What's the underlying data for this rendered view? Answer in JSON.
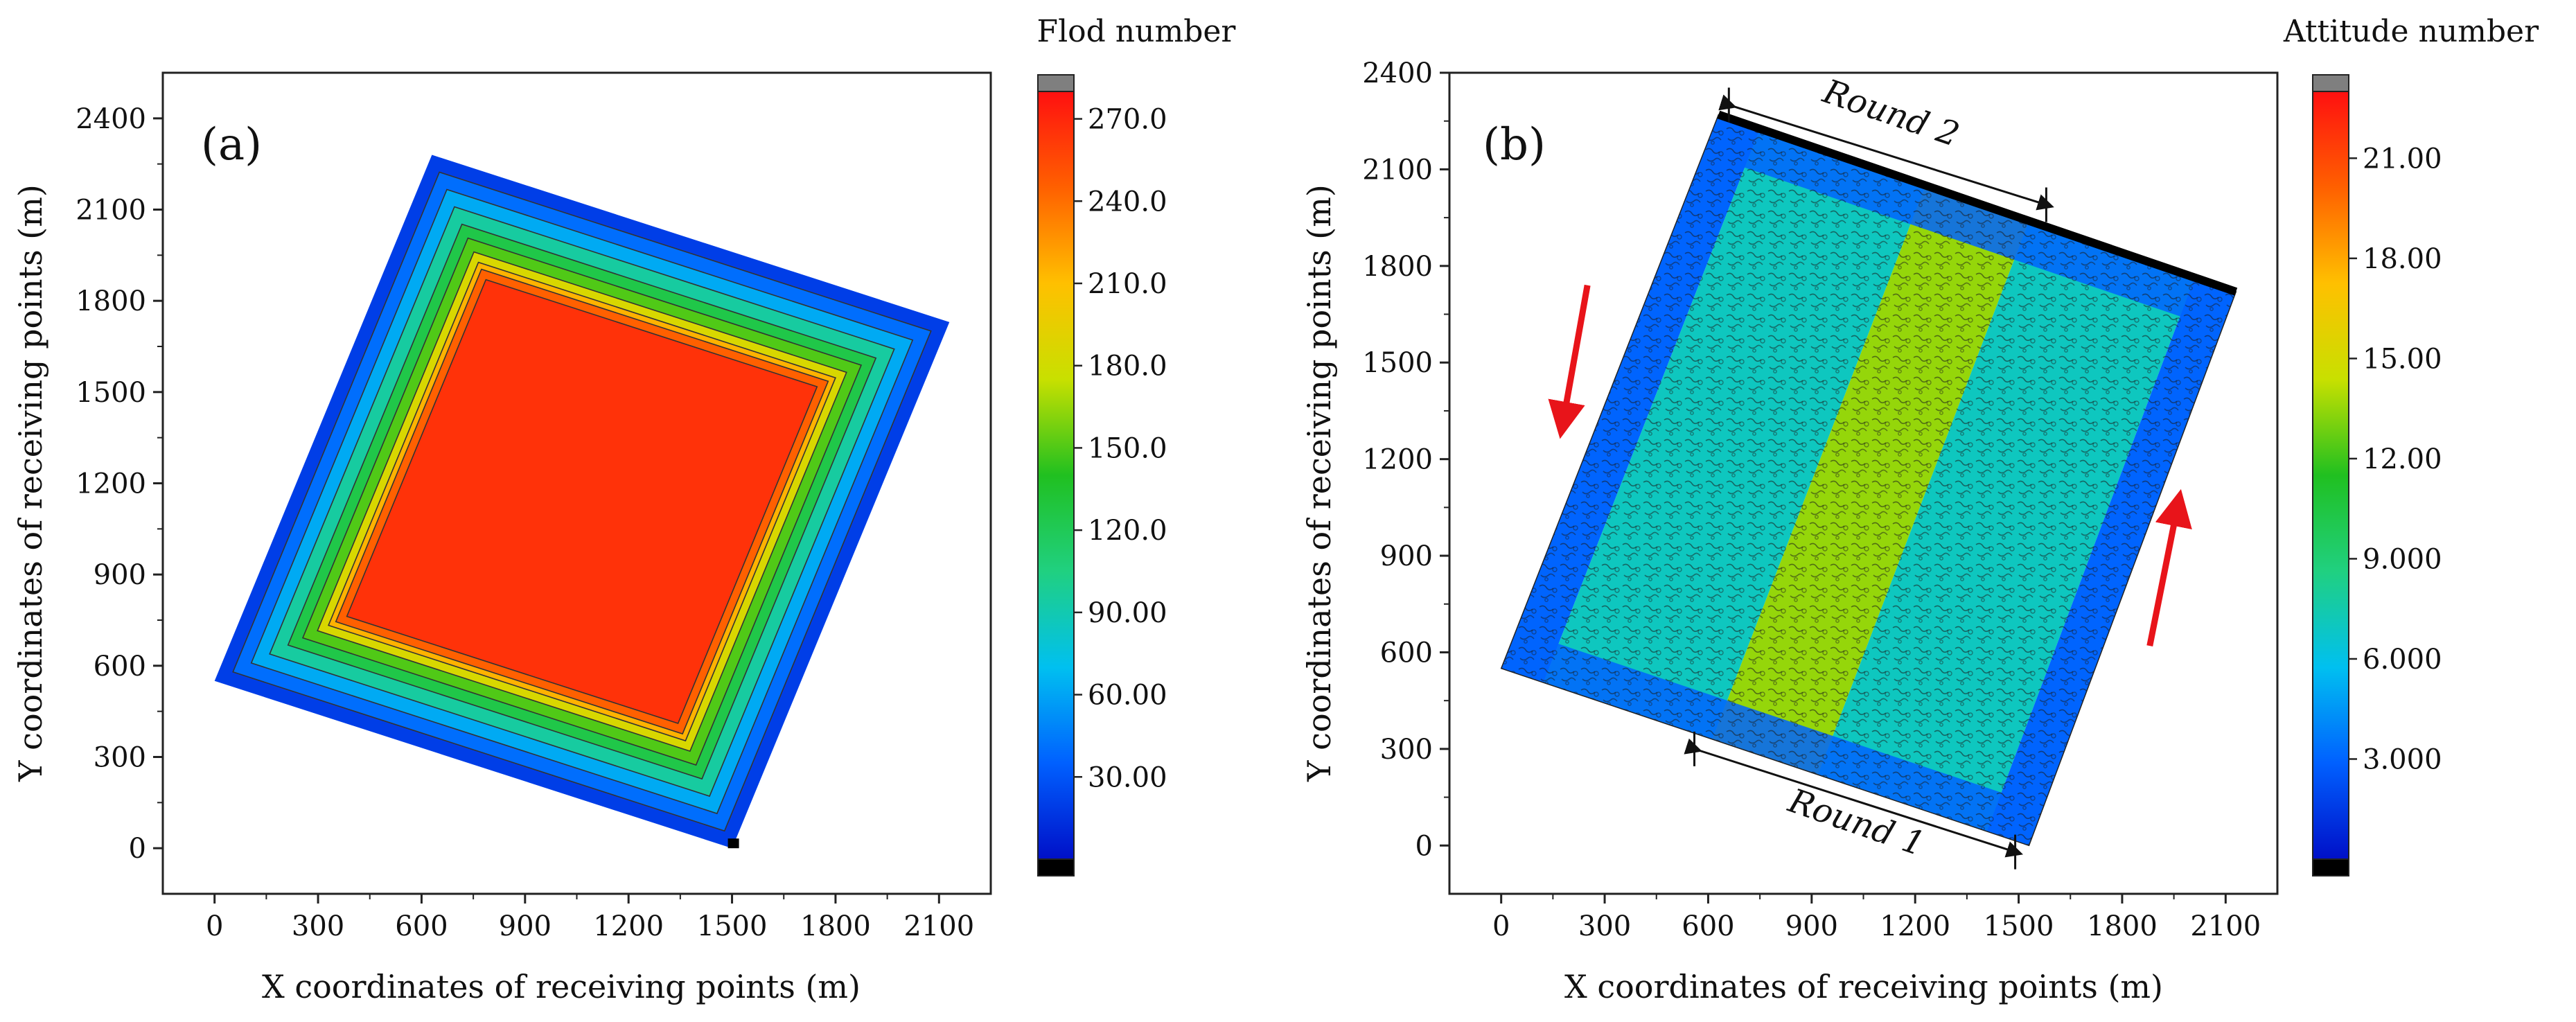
{
  "chart_data": [
    {
      "type": "heatmap",
      "panel_label": "(a)",
      "xlabel": "X coordinates of receiving points (m)",
      "ylabel": "Y coordinates of receiving points (m)",
      "xlim": [
        -150,
        2250
      ],
      "ylim": [
        -150,
        2550
      ],
      "x_ticks": [
        0,
        300,
        600,
        900,
        1200,
        1500,
        1800,
        2100
      ],
      "y_ticks": [
        0,
        300,
        600,
        900,
        1200,
        1500,
        1800,
        2100,
        2400
      ],
      "x_tick_labels": [
        "0",
        "300",
        "600",
        "900",
        "1200",
        "1500",
        "1800",
        "2100"
      ],
      "y_tick_labels": [
        "0",
        "300",
        "600",
        "900",
        "1200",
        "1500",
        "1800",
        "2100",
        "2400"
      ],
      "corners": [
        [
          0,
          550
        ],
        [
          1500,
          0
        ],
        [
          2130,
          1730
        ],
        [
          630,
          2280
        ]
      ],
      "colorbar": {
        "title": "Flod number",
        "min": 0,
        "max": 280,
        "tick_values": [
          30,
          60,
          90,
          120,
          150,
          180,
          210,
          240,
          270
        ],
        "tick_labels": [
          "30.00",
          "60.00",
          "90.00",
          "120.0",
          "150.0",
          "180.0",
          "210.0",
          "240.0",
          "270.0"
        ]
      },
      "levels": [
        {
          "offset": 0.0,
          "value": 20
        },
        {
          "offset": 0.05,
          "value": 40
        },
        {
          "offset": 0.1,
          "value": 62
        },
        {
          "offset": 0.15,
          "value": 95
        },
        {
          "offset": 0.2,
          "value": 125
        },
        {
          "offset": 0.24,
          "value": 150
        },
        {
          "offset": 0.28,
          "value": 185
        },
        {
          "offset": 0.31,
          "value": 215
        },
        {
          "offset": 0.33,
          "value": 245
        },
        {
          "offset": 0.36,
          "value": 265
        }
      ]
    },
    {
      "type": "heatmap",
      "panel_label": "(b)",
      "xlabel": "X coordinates of receiving points (m)",
      "ylabel": "Y coordinates of receiving points (m)",
      "xlim": [
        -150,
        2250
      ],
      "ylim": [
        -150,
        2400
      ],
      "x_ticks": [
        0,
        300,
        600,
        900,
        1200,
        1500,
        1800,
        2100
      ],
      "y_ticks": [
        0,
        300,
        600,
        900,
        1200,
        1500,
        1800,
        2100,
        2400
      ],
      "x_tick_labels": [
        "0",
        "300",
        "600",
        "900",
        "1200",
        "1500",
        "1800",
        "2100"
      ],
      "y_tick_labels": [
        "0",
        "300",
        "600",
        "900",
        "1200",
        "1500",
        "1800",
        "2100",
        "2400"
      ],
      "corners": [
        [
          0,
          550
        ],
        [
          1530,
          0
        ],
        [
          2130,
          1720
        ],
        [
          630,
          2270
        ]
      ],
      "colorbar": {
        "title": "Attitude number",
        "min": 0,
        "max": 23,
        "tick_values": [
          3,
          6,
          9,
          12,
          15,
          18,
          21
        ],
        "tick_labels": [
          "3.000",
          "6.000",
          "9.000",
          "12.00",
          "15.00",
          "18.00",
          "21.00"
        ]
      },
      "bands": [
        {
          "from": 0.0,
          "to": 0.08,
          "value": 3.0
        },
        {
          "from": 0.08,
          "to": 0.4,
          "value": 7.0
        },
        {
          "from": 0.4,
          "to": 0.6,
          "value": 13.5
        },
        {
          "from": 0.6,
          "to": 0.92,
          "value": 7.0
        },
        {
          "from": 0.92,
          "to": 1.0,
          "value": 3.0
        }
      ],
      "annotations": {
        "round1": "Round 1",
        "round2": "Round 2"
      }
    }
  ],
  "colors": {
    "top_cap": "#7f7f7f",
    "bottom_cap": "#000000",
    "colormap": [
      "#0010c8",
      "#0060ff",
      "#00c0f0",
      "#20d080",
      "#20c020",
      "#c8e000",
      "#ffc000",
      "#ff6000",
      "#ff1010"
    ],
    "arrow": "#e8141a"
  }
}
